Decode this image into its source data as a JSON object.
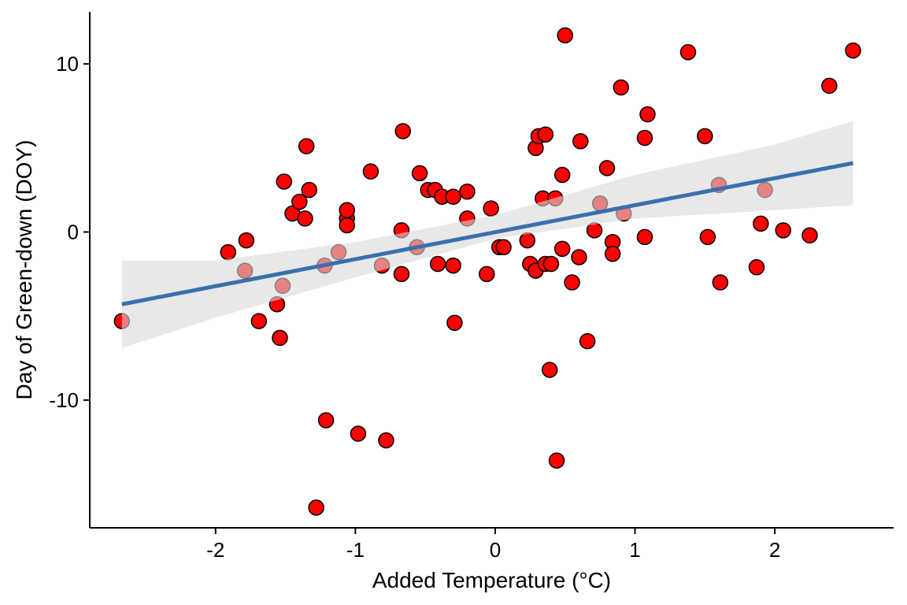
{
  "chart_data": {
    "type": "scatter",
    "title": "",
    "xlabel": "Added Temperature (°C)",
    "ylabel": "Day of Green-down (DOY)",
    "xlim": [
      -2.9,
      2.85
    ],
    "ylim": [
      -17.6,
      13.1
    ],
    "x_ticks": [
      -2,
      -1,
      0,
      1,
      2
    ],
    "x_tick_labels": [
      "-2",
      "-1",
      "0",
      "1",
      "2"
    ],
    "y_ticks": [
      -10,
      0,
      10
    ],
    "y_tick_labels": [
      "-10",
      "0",
      "10"
    ],
    "grid": false,
    "colors": {
      "point_fill": "#ff0000",
      "point_stroke": "#000000",
      "fit_line": "#3a6fad",
      "confidence_band": "#d9d9d9"
    },
    "series": [
      {
        "points": [
          {
            "x": -2.67,
            "y": -5.3
          },
          {
            "x": -1.91,
            "y": -1.2
          },
          {
            "x": -1.78,
            "y": -0.5
          },
          {
            "x": -1.79,
            "y": -2.3
          },
          {
            "x": -1.69,
            "y": -5.3
          },
          {
            "x": -1.56,
            "y": -4.3
          },
          {
            "x": -1.52,
            "y": -3.2
          },
          {
            "x": -1.54,
            "y": -6.3
          },
          {
            "x": -1.51,
            "y": 3.0
          },
          {
            "x": -1.45,
            "y": 1.1
          },
          {
            "x": -1.4,
            "y": 1.8
          },
          {
            "x": -1.36,
            "y": 0.8
          },
          {
            "x": -1.35,
            "y": 5.1
          },
          {
            "x": -1.33,
            "y": 2.5
          },
          {
            "x": -1.28,
            "y": -16.4
          },
          {
            "x": -1.21,
            "y": -11.2
          },
          {
            "x": -1.22,
            "y": -2.0
          },
          {
            "x": -1.12,
            "y": -1.2
          },
          {
            "x": -1.06,
            "y": 0.8
          },
          {
            "x": -1.06,
            "y": 1.3
          },
          {
            "x": -1.06,
            "y": 0.4
          },
          {
            "x": -0.98,
            "y": -12.0
          },
          {
            "x": -0.89,
            "y": 3.6
          },
          {
            "x": -0.81,
            "y": -2.0
          },
          {
            "x": -0.78,
            "y": -12.4
          },
          {
            "x": -0.66,
            "y": 6.0
          },
          {
            "x": -0.67,
            "y": 0.1
          },
          {
            "x": -0.67,
            "y": -2.5
          },
          {
            "x": -0.56,
            "y": -0.9
          },
          {
            "x": -0.54,
            "y": 3.5
          },
          {
            "x": -0.48,
            "y": 2.5
          },
          {
            "x": -0.43,
            "y": 2.5
          },
          {
            "x": -0.41,
            "y": -1.9
          },
          {
            "x": -0.38,
            "y": 2.1
          },
          {
            "x": -0.3,
            "y": 2.1
          },
          {
            "x": -0.3,
            "y": -2.0
          },
          {
            "x": -0.29,
            "y": -5.4
          },
          {
            "x": -0.2,
            "y": 2.4
          },
          {
            "x": -0.2,
            "y": 0.8
          },
          {
            "x": -0.06,
            "y": -2.5
          },
          {
            "x": -0.03,
            "y": 1.4
          },
          {
            "x": 0.03,
            "y": -0.9
          },
          {
            "x": 0.06,
            "y": -0.9
          },
          {
            "x": 0.23,
            "y": -0.5
          },
          {
            "x": 0.25,
            "y": -1.9
          },
          {
            "x": 0.29,
            "y": -2.3
          },
          {
            "x": 0.29,
            "y": 5.0
          },
          {
            "x": 0.31,
            "y": 5.7
          },
          {
            "x": 0.34,
            "y": 2.0
          },
          {
            "x": 0.36,
            "y": 5.8
          },
          {
            "x": 0.36,
            "y": -1.9
          },
          {
            "x": 0.4,
            "y": -1.9
          },
          {
            "x": 0.39,
            "y": -8.2
          },
          {
            "x": 0.43,
            "y": 2.0
          },
          {
            "x": 0.44,
            "y": -13.6
          },
          {
            "x": 0.48,
            "y": 3.4
          },
          {
            "x": 0.48,
            "y": -1.0
          },
          {
            "x": 0.5,
            "y": 11.7
          },
          {
            "x": 0.55,
            "y": -3.0
          },
          {
            "x": 0.6,
            "y": -1.5
          },
          {
            "x": 0.61,
            "y": 5.4
          },
          {
            "x": 0.66,
            "y": -6.5
          },
          {
            "x": 0.71,
            "y": 0.1
          },
          {
            "x": 0.75,
            "y": 1.7
          },
          {
            "x": 0.8,
            "y": 3.8
          },
          {
            "x": 0.84,
            "y": -0.6
          },
          {
            "x": 0.84,
            "y": -1.3
          },
          {
            "x": 0.9,
            "y": 8.6
          },
          {
            "x": 0.92,
            "y": 1.1
          },
          {
            "x": 1.07,
            "y": 5.6
          },
          {
            "x": 1.07,
            "y": -0.3
          },
          {
            "x": 1.09,
            "y": 7.0
          },
          {
            "x": 1.38,
            "y": 10.7
          },
          {
            "x": 1.5,
            "y": 5.7
          },
          {
            "x": 1.52,
            "y": -0.3
          },
          {
            "x": 1.6,
            "y": 2.8
          },
          {
            "x": 1.61,
            "y": -3.0
          },
          {
            "x": 1.87,
            "y": -2.1
          },
          {
            "x": 1.9,
            "y": 0.5
          },
          {
            "x": 1.93,
            "y": 2.5
          },
          {
            "x": 2.06,
            "y": 0.1
          },
          {
            "x": 2.25,
            "y": -0.2
          },
          {
            "x": 2.39,
            "y": 8.7
          },
          {
            "x": 2.56,
            "y": 10.8
          }
        ]
      }
    ],
    "fit": {
      "type": "linear",
      "x": [
        -2.67,
        2.56
      ],
      "y": [
        -4.3,
        4.1
      ],
      "band_x": [
        -2.67,
        -2.0,
        -1.0,
        0.0,
        1.0,
        2.0,
        2.56
      ],
      "band_lower": [
        -6.9,
        -5.1,
        -2.7,
        -0.4,
        0.8,
        1.3,
        1.6
      ],
      "band_upper": [
        -1.7,
        -1.7,
        -0.6,
        1.0,
        3.4,
        5.2,
        6.6
      ]
    }
  }
}
